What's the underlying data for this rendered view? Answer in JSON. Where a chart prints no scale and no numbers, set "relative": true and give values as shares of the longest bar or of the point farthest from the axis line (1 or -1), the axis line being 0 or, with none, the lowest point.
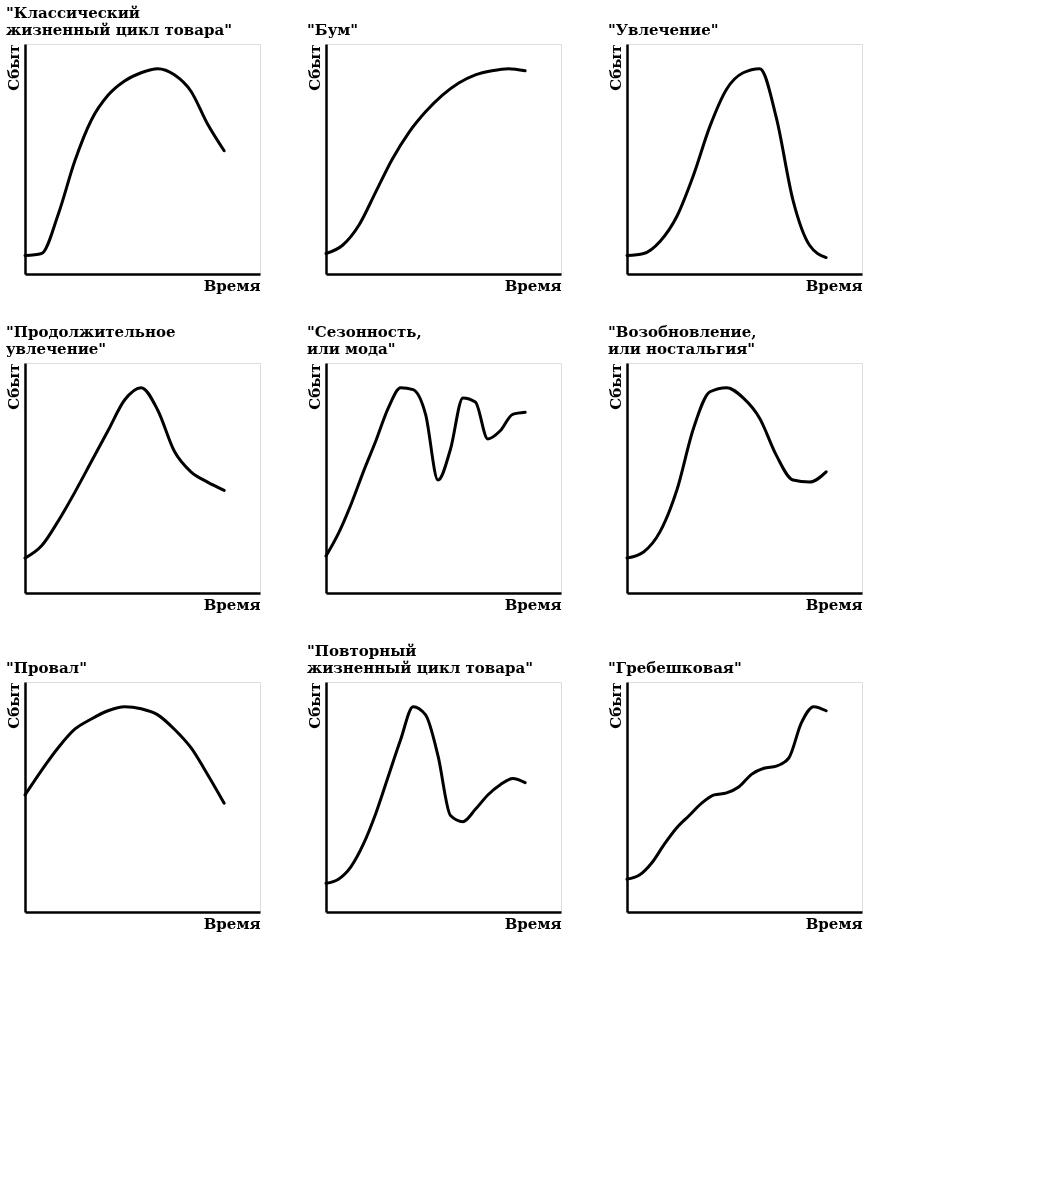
{
  "chart_data": [
    {
      "type": "line",
      "relative": true,
      "title": "\"Классический\nжизненный цикл товара\"",
      "xlabel": "Время",
      "ylabel": "Сбыт",
      "categories": [
        null,
        null,
        null,
        null,
        null,
        null,
        null,
        null,
        null,
        null,
        null,
        null,
        null
      ],
      "series": [
        {
          "color": "#000000",
          "values": [
            0.09,
            0.1,
            0.29,
            0.55,
            0.75,
            0.87,
            0.94,
            0.98,
            1.0,
            0.97,
            0.89,
            0.73,
            0.6
          ]
        }
      ]
    },
    {
      "type": "line",
      "relative": true,
      "title": "\"Бум\"",
      "xlabel": "Время",
      "ylabel": "Сбыт",
      "categories": [
        null,
        null,
        null,
        null,
        null,
        null,
        null,
        null,
        null,
        null,
        null,
        null,
        null
      ],
      "series": [
        {
          "color": "#000000",
          "values": [
            0.1,
            0.14,
            0.24,
            0.4,
            0.56,
            0.69,
            0.79,
            0.87,
            0.93,
            0.97,
            0.99,
            1.0,
            0.99
          ]
        }
      ]
    },
    {
      "type": "line",
      "relative": true,
      "title": "\"Увлечение\"",
      "xlabel": "Время",
      "ylabel": "Сбыт",
      "categories": [
        null,
        null,
        null,
        null,
        null,
        null,
        null,
        null,
        null,
        null,
        null,
        null,
        null
      ],
      "series": [
        {
          "color": "#000000",
          "values": [
            0.09,
            0.1,
            0.16,
            0.28,
            0.48,
            0.72,
            0.9,
            0.98,
            1.0,
            0.76,
            0.36,
            0.14,
            0.08
          ]
        }
      ]
    },
    {
      "type": "line",
      "relative": true,
      "title": "\"Продолжительное\nувлечение\"",
      "xlabel": "Время",
      "ylabel": "Сбыт",
      "categories": [
        null,
        null,
        null,
        null,
        null,
        null,
        null,
        null,
        null,
        null,
        null,
        null,
        null
      ],
      "series": [
        {
          "color": "#000000",
          "values": [
            0.17,
            0.23,
            0.35,
            0.49,
            0.64,
            0.79,
            0.94,
            1.0,
            0.89,
            0.69,
            0.59,
            0.54,
            0.5
          ]
        }
      ]
    },
    {
      "type": "line",
      "relative": true,
      "title": "\"Сезонность,\nили мода\"",
      "xlabel": "Время",
      "ylabel": "Сбыт",
      "categories": [
        null,
        null,
        null,
        null,
        null,
        null,
        null,
        null,
        null,
        null,
        null,
        null,
        null,
        null,
        null,
        null,
        null
      ],
      "series": [
        {
          "color": "#000000",
          "values": [
            0.18,
            0.29,
            0.43,
            0.59,
            0.74,
            0.9,
            1.0,
            0.99,
            0.87,
            0.55,
            0.7,
            0.95,
            0.93,
            0.75,
            0.79,
            0.87,
            0.88
          ]
        }
      ]
    },
    {
      "type": "line",
      "relative": true,
      "title": "\"Возобновление,\nили ностальгия\"",
      "xlabel": "Время",
      "ylabel": "Сбыт",
      "categories": [
        null,
        null,
        null,
        null,
        null,
        null,
        null,
        null,
        null,
        null,
        null,
        null,
        null
      ],
      "series": [
        {
          "color": "#000000",
          "values": [
            0.17,
            0.2,
            0.3,
            0.5,
            0.8,
            0.98,
            1.0,
            0.95,
            0.85,
            0.67,
            0.55,
            0.54,
            0.59
          ]
        }
      ]
    },
    {
      "type": "line",
      "relative": true,
      "title": "\"Провал\"",
      "xlabel": "Время",
      "ylabel": "Сбыт",
      "categories": [
        null,
        null,
        null,
        null,
        null,
        null,
        null,
        null,
        null,
        null,
        null,
        null,
        null
      ],
      "series": [
        {
          "color": "#000000",
          "values": [
            0.57,
            0.69,
            0.8,
            0.89,
            0.94,
            0.98,
            1.0,
            0.99,
            0.96,
            0.89,
            0.8,
            0.67,
            0.53
          ]
        }
      ]
    },
    {
      "type": "line",
      "relative": true,
      "title": "\"Повторный\nжизненный цикл товара\"",
      "xlabel": "Время",
      "ylabel": "Сбыт",
      "categories": [
        null,
        null,
        null,
        null,
        null,
        null,
        null,
        null,
        null,
        null,
        null,
        null,
        null,
        null,
        null,
        null,
        null
      ],
      "series": [
        {
          "color": "#000000",
          "values": [
            0.14,
            0.16,
            0.22,
            0.33,
            0.48,
            0.66,
            0.84,
            1.0,
            0.96,
            0.76,
            0.47,
            0.44,
            0.5,
            0.57,
            0.62,
            0.65,
            0.63
          ]
        }
      ]
    },
    {
      "type": "line",
      "relative": true,
      "title": "\"Гребешковая\"",
      "xlabel": "Время",
      "ylabel": "Сбыт",
      "categories": [
        null,
        null,
        null,
        null,
        null,
        null,
        null,
        null,
        null,
        null,
        null,
        null,
        null,
        null,
        null,
        null,
        null
      ],
      "series": [
        {
          "color": "#000000",
          "values": [
            0.16,
            0.18,
            0.24,
            0.33,
            0.41,
            0.47,
            0.53,
            0.57,
            0.58,
            0.61,
            0.67,
            0.7,
            0.71,
            0.75,
            0.92,
            1.0,
            0.98
          ]
        }
      ]
    }
  ]
}
